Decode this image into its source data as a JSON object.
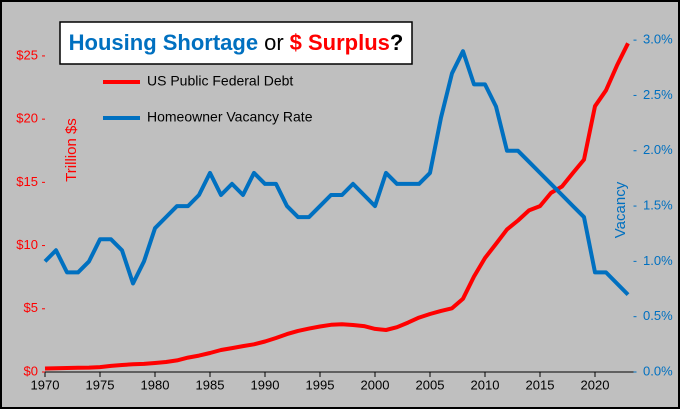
{
  "chart_data": {
    "type": "line",
    "title": [
      "Housing Shortage",
      "or",
      "$ Surplus",
      "?"
    ],
    "title_colors": [
      "#0070c0",
      "#000000",
      "#ff0000",
      "#000000"
    ],
    "ylabel": "Trillion $s",
    "y2label": "Vacancy",
    "x": [
      1970,
      1971,
      1972,
      1973,
      1974,
      1975,
      1976,
      1977,
      1978,
      1979,
      1980,
      1981,
      1982,
      1983,
      1984,
      1985,
      1986,
      1987,
      1988,
      1989,
      1990,
      1991,
      1992,
      1993,
      1994,
      1995,
      1996,
      1997,
      1998,
      1999,
      2000,
      2001,
      2002,
      2003,
      2004,
      2005,
      2006,
      2007,
      2008,
      2009,
      2010,
      2011,
      2012,
      2013,
      2014,
      2015,
      2016,
      2017,
      2018,
      2019,
      2020,
      2021,
      2022,
      2023
    ],
    "xlim": [
      1970,
      2023.5
    ],
    "xticks": [
      1970,
      1975,
      1980,
      1985,
      1990,
      1995,
      2000,
      2005,
      2010,
      2015,
      2020
    ],
    "ylim": [
      0,
      28
    ],
    "yticks": [
      {
        "value": 0,
        "label": "$0"
      },
      {
        "value": 5,
        "label": "$5"
      },
      {
        "value": 10,
        "label": "$10"
      },
      {
        "value": 15,
        "label": "$15"
      },
      {
        "value": 20,
        "label": "$20"
      },
      {
        "value": 25,
        "label": "$25"
      }
    ],
    "y2lim": [
      0,
      3.2
    ],
    "y2ticks": [
      {
        "value": 0,
        "label": "0.0%"
      },
      {
        "value": 0.5,
        "label": "0.5%"
      },
      {
        "value": 1,
        "label": "1.0%"
      },
      {
        "value": 1.5,
        "label": "1.5%"
      },
      {
        "value": 2,
        "label": "2.0%"
      },
      {
        "value": 2.5,
        "label": "2.5%"
      },
      {
        "value": 3,
        "label": "3.0%"
      }
    ],
    "series": [
      {
        "name": "US Public Federal Debt",
        "color": "#ff0000",
        "axis": "y",
        "values": [
          0.28,
          0.3,
          0.32,
          0.34,
          0.35,
          0.39,
          0.48,
          0.55,
          0.61,
          0.64,
          0.71,
          0.79,
          0.92,
          1.14,
          1.3,
          1.5,
          1.74,
          1.89,
          2.05,
          2.19,
          2.41,
          2.69,
          3.0,
          3.25,
          3.43,
          3.6,
          3.73,
          3.77,
          3.72,
          3.63,
          3.41,
          3.32,
          3.54,
          3.91,
          4.3,
          4.59,
          4.83,
          5.04,
          5.8,
          7.55,
          9.02,
          10.13,
          11.28,
          11.98,
          12.78,
          13.12,
          14.17,
          14.67,
          15.75,
          16.8,
          21.02,
          22.28,
          24.25,
          26.0
        ]
      },
      {
        "name": "Homeowner Vacancy Rate",
        "color": "#0070c0",
        "axis": "y2",
        "values": [
          1.0,
          1.1,
          0.9,
          0.9,
          1.0,
          1.2,
          1.2,
          1.1,
          0.8,
          1.0,
          1.3,
          1.4,
          1.5,
          1.5,
          1.6,
          1.8,
          1.6,
          1.7,
          1.6,
          1.8,
          1.7,
          1.7,
          1.5,
          1.4,
          1.4,
          1.5,
          1.6,
          1.6,
          1.7,
          1.6,
          1.5,
          1.8,
          1.7,
          1.7,
          1.7,
          1.8,
          2.3,
          2.7,
          2.9,
          2.6,
          2.6,
          2.4,
          2.0,
          2.0,
          1.9,
          1.8,
          1.7,
          1.6,
          1.5,
          1.4,
          0.9,
          0.9,
          0.8,
          0.7
        ]
      }
    ]
  }
}
